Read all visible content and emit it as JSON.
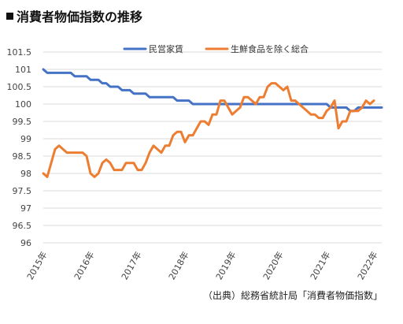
{
  "header": {
    "title": "消費者物価指数の推移"
  },
  "source": "（出典）総務省統計局「消費者物価指数」",
  "chart_data": {
    "type": "line",
    "ylim": [
      96,
      101.5
    ],
    "ytick_labels": [
      "96",
      "96.5",
      "97",
      "97.5",
      "98",
      "98.5",
      "99",
      "99.5",
      "100",
      "100.5",
      "101",
      "101.5"
    ],
    "ytick_values": [
      96,
      96.5,
      97,
      97.5,
      98,
      98.5,
      99,
      99.5,
      100,
      100.5,
      101,
      101.5
    ],
    "xtick_labels": [
      "2015年",
      "2016年",
      "2017年",
      "2018年",
      "2019年",
      "2020年",
      "2021年",
      "2022年"
    ],
    "xtick_index": [
      0,
      12,
      24,
      36,
      48,
      60,
      72,
      84
    ],
    "grid": "horizontal",
    "legend_position": "top",
    "series": [
      {
        "name": "民営家賃",
        "color": "#4472C4",
        "values": [
          101.0,
          100.9,
          100.9,
          100.9,
          100.9,
          100.9,
          100.9,
          100.9,
          100.8,
          100.8,
          100.8,
          100.8,
          100.7,
          100.7,
          100.7,
          100.6,
          100.6,
          100.5,
          100.5,
          100.5,
          100.4,
          100.4,
          100.4,
          100.3,
          100.3,
          100.3,
          100.3,
          100.2,
          100.2,
          100.2,
          100.2,
          100.2,
          100.2,
          100.2,
          100.1,
          100.1,
          100.1,
          100.1,
          100.0,
          100.0,
          100.0,
          100.0,
          100.0,
          100.0,
          100.0,
          100.0,
          100.0,
          100.0,
          100.0,
          100.0,
          100.0,
          100.0,
          100.0,
          100.0,
          100.0,
          100.0,
          100.0,
          100.0,
          100.0,
          100.0,
          100.0,
          100.0,
          100.0,
          100.0,
          100.0,
          100.0,
          100.0,
          100.0,
          100.0,
          100.0,
          100.0,
          100.0,
          100.0,
          99.9,
          99.9,
          99.9,
          99.9,
          99.9,
          99.8,
          99.8,
          99.9,
          99.9,
          99.9,
          99.9,
          99.9,
          99.9,
          99.9
        ]
      },
      {
        "name": "生鮮食品を除く総合",
        "color": "#ED7D31",
        "values": [
          98.0,
          97.9,
          98.3,
          98.7,
          98.8,
          98.7,
          98.6,
          98.6,
          98.6,
          98.6,
          98.6,
          98.5,
          98.0,
          97.9,
          98.0,
          98.3,
          98.4,
          98.3,
          98.1,
          98.1,
          98.1,
          98.3,
          98.3,
          98.3,
          98.1,
          98.1,
          98.3,
          98.6,
          98.8,
          98.7,
          98.6,
          98.8,
          98.8,
          99.1,
          99.2,
          99.2,
          98.9,
          99.1,
          99.1,
          99.3,
          99.5,
          99.5,
          99.4,
          99.7,
          99.7,
          100.1,
          100.1,
          99.9,
          99.7,
          99.8,
          99.9,
          100.2,
          100.2,
          100.1,
          100.0,
          100.2,
          100.2,
          100.5,
          100.6,
          100.6,
          100.5,
          100.4,
          100.5,
          100.1,
          100.1,
          100.0,
          99.9,
          99.8,
          99.7,
          99.7,
          99.6,
          99.6,
          99.8,
          99.9,
          100.1,
          99.3,
          99.5,
          99.5,
          99.8,
          99.8,
          99.8,
          99.9,
          100.1,
          100.0,
          100.1
        ]
      }
    ]
  }
}
